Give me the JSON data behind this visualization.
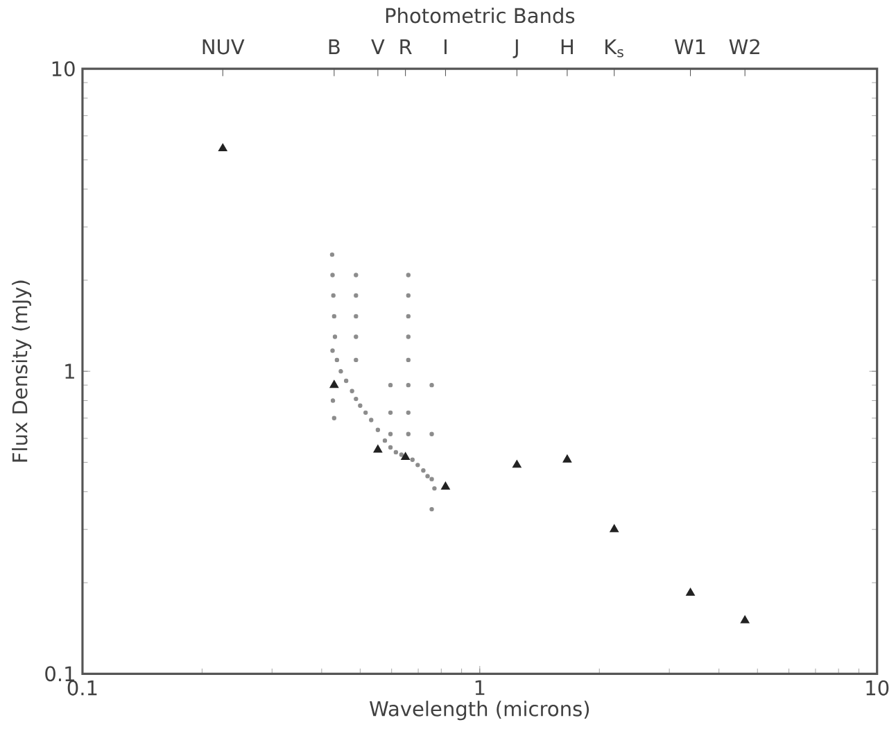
{
  "chart_data": {
    "type": "scatter",
    "xlabel": "Wavelength (microns)",
    "ylabel": "Flux Density (mJy)",
    "log": "xy",
    "xlim": [
      0.1,
      10
    ],
    "ylim": [
      0.1,
      10
    ],
    "xticks": [
      0.1,
      1,
      10
    ],
    "yticks": [
      0.1,
      1,
      10
    ],
    "annotations": [
      "Photometric Bands",
      "NUV",
      "B",
      "V",
      "R",
      "I",
      "J",
      "H",
      "K$_{s}$",
      "W1",
      "W2"
    ],
    "grid": false,
    "series": [
      {
        "color": "#8c8c8c",
        "marker": "circle",
        "x": [
          0.426,
          0.437,
          0.447,
          0.461,
          0.477,
          0.488,
          0.5,
          0.516,
          0.533,
          0.554,
          0.577,
          0.596,
          0.615,
          0.635,
          0.661,
          0.677,
          0.698,
          0.721,
          0.739,
          0.757,
          0.769,
          0.425,
          0.426,
          0.428,
          0.43,
          0.432,
          0.427,
          0.43,
          0.488,
          0.488,
          0.488,
          0.488,
          0.488,
          0.661,
          0.661,
          0.661,
          0.661,
          0.661,
          0.661,
          0.661,
          0.661,
          0.596,
          0.596,
          0.596,
          0.757,
          0.757,
          0.757
        ],
        "values": [
          1.17,
          1.09,
          1.0,
          0.93,
          0.86,
          0.81,
          0.77,
          0.73,
          0.69,
          0.64,
          0.59,
          0.56,
          0.54,
          0.53,
          null,
          0.51,
          0.49,
          0.47,
          0.45,
          0.44,
          0.41,
          2.43,
          2.08,
          1.78,
          1.52,
          1.3,
          0.8,
          0.7,
          2.08,
          1.78,
          1.52,
          1.3,
          1.09,
          2.08,
          1.78,
          1.52,
          1.3,
          1.09,
          0.9,
          0.73,
          0.62,
          0.9,
          0.73,
          0.62,
          0.9,
          0.62,
          0.35
        ]
      },
      {
        "color": "#222222",
        "marker": "triangle",
        "x": [
          0.2255,
          0.43,
          0.554,
          0.65,
          0.82,
          1.24,
          1.66,
          2.18,
          3.39,
          4.65
        ],
        "values": [
          5.45,
          0.9,
          0.55,
          0.52,
          0.415,
          0.49,
          0.51,
          0.3,
          0.185,
          0.15
        ]
      }
    ]
  }
}
